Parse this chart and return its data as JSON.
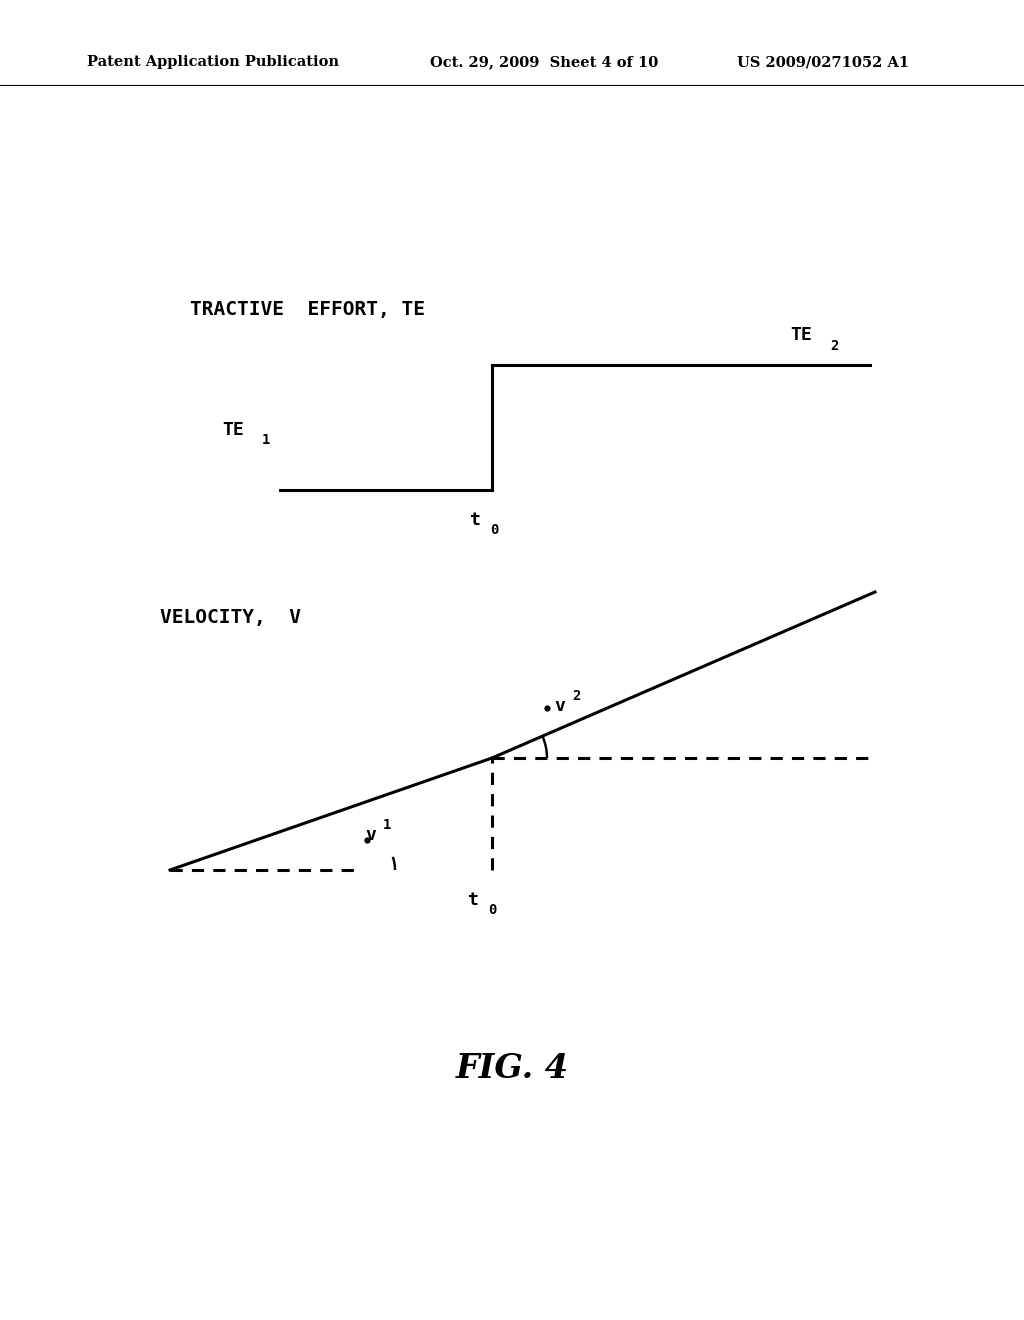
{
  "bg_color": "#ffffff",
  "text_color": "#000000",
  "header_left": "Patent Application Publication",
  "header_center": "Oct. 29, 2009  Sheet 4 of 10",
  "header_right": "US 2009/0271052 A1",
  "fig_label": "FIG. 4",
  "te_label": "TRACTIVE  EFFORT, TE",
  "vel_label": "VELOCITY,  V",
  "line_color": "#000000",
  "line_width": 2.2,
  "fig_width": 10.24,
  "fig_height": 13.2
}
